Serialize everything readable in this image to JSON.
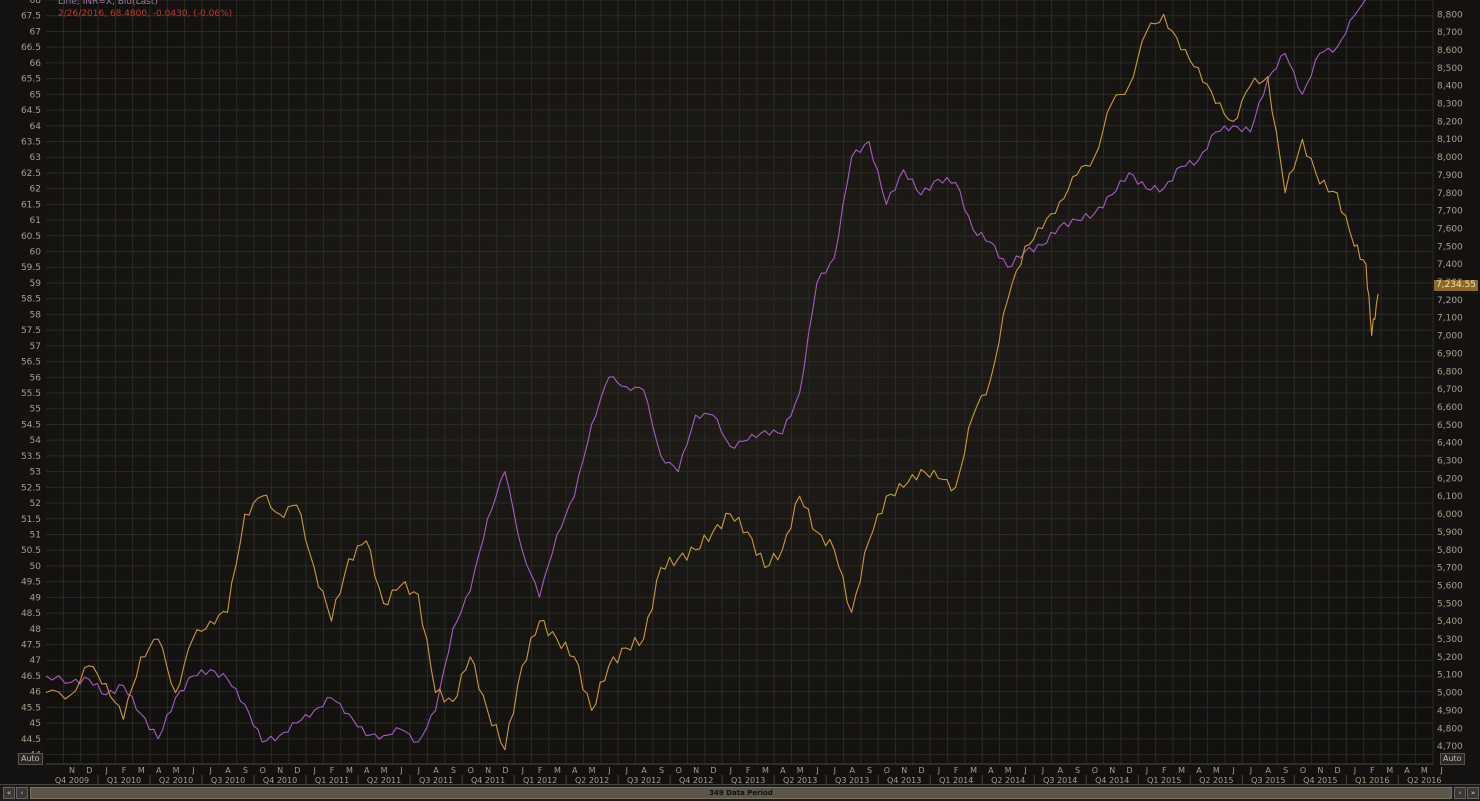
{
  "legend": {
    "line1": "Line; INR=X, Bid(Last)",
    "line2": "2/26/2016, 68.4800, -0.0430, (-0.06%)"
  },
  "controls": {
    "auto_left": "Auto",
    "auto_right": "Auto"
  },
  "last_value_label": "7,234.55",
  "scrollbar": {
    "label": "349 Data Period",
    "btn_first": "«",
    "btn_prev": "‹",
    "btn_next": "›",
    "btn_last": "»"
  },
  "colors": {
    "background": "#141210",
    "grid": "#2c2a25",
    "inr_series": "#a35cc0",
    "index_series": "#c89a3a",
    "axis_text": "#a89e8c"
  },
  "chart_data": {
    "type": "line",
    "x_range": [
      "2009-10",
      "2016-06"
    ],
    "left_axis": {
      "ylim": [
        43.7,
        68.0
      ],
      "ticks": [
        "44",
        "44.5",
        "45",
        "45.5",
        "46",
        "46.5",
        "47",
        "47.5",
        "48",
        "48.5",
        "49",
        "49.5",
        "50",
        "50.5",
        "51",
        "51.5",
        "52",
        "52.5",
        "53",
        "53.5",
        "54",
        "54.5",
        "55",
        "55.5",
        "56",
        "56.5",
        "57",
        "57.5",
        "58",
        "58.5",
        "59",
        "59.5",
        "60",
        "60.5",
        "61",
        "61.5",
        "62",
        "62.5",
        "63",
        "63.5",
        "64",
        "64.5",
        "65",
        "65.5",
        "66",
        "66.5",
        "67",
        "67.5",
        "68"
      ]
    },
    "right_axis": {
      "ylim": [
        4600,
        8880
      ],
      "ticks": [
        "4,700",
        "4,800",
        "4,900",
        "5,000",
        "5,100",
        "5,200",
        "5,300",
        "5,400",
        "5,500",
        "5,600",
        "5,700",
        "5,800",
        "5,900",
        "6,000",
        "6,100",
        "6,200",
        "6,300",
        "6,400",
        "6,500",
        "6,600",
        "6,700",
        "6,800",
        "6,900",
        "7,000",
        "7,100",
        "7,200",
        "7,300",
        "7,400",
        "7,500",
        "7,600",
        "7,700",
        "7,800",
        "7,900",
        "8,000",
        "8,100",
        "8,200",
        "8,300",
        "8,400",
        "8,500",
        "8,600",
        "8,700",
        "8,800"
      ]
    },
    "month_labels": [
      "N",
      "D",
      "J",
      "F",
      "M",
      "A",
      "M",
      "J",
      "J",
      "A",
      "S",
      "O",
      "N",
      "D",
      "J",
      "F",
      "M",
      "A",
      "M",
      "J",
      "J",
      "A",
      "S",
      "O",
      "N",
      "D",
      "J",
      "F",
      "M",
      "A",
      "M",
      "J",
      "J",
      "A",
      "S",
      "O",
      "N",
      "D",
      "J",
      "F",
      "M",
      "A",
      "M",
      "J",
      "J",
      "A",
      "S",
      "O",
      "N",
      "D",
      "J",
      "F",
      "M",
      "A",
      "M",
      "J",
      "J",
      "A",
      "S",
      "O",
      "N",
      "D",
      "J",
      "F",
      "M",
      "A",
      "M",
      "J",
      "J",
      "A",
      "S",
      "O",
      "N",
      "D",
      "J",
      "F",
      "M",
      "A",
      "M",
      "J"
    ],
    "quarter_labels": [
      "Q4 2009",
      "Q1 2010",
      "Q2 2010",
      "Q3 2010",
      "Q4 2010",
      "Q1 2011",
      "Q2 2011",
      "Q3 2011",
      "Q4 2011",
      "Q1 2012",
      "Q2 2012",
      "Q3 2012",
      "Q4 2012",
      "Q1 2013",
      "Q2 2013",
      "Q3 2013",
      "Q4 2013",
      "Q1 2014",
      "Q2 2014",
      "Q3 2014",
      "Q4 2014",
      "Q1 2015",
      "Q2 2015",
      "Q3 2015",
      "Q4 2015",
      "Q1 2016",
      "Q2 2016"
    ],
    "series": [
      {
        "axis": "left",
        "points": [
          [
            "2009-10-01",
            46.5
          ],
          [
            "2009-11-15",
            46.3
          ],
          [
            "2009-12-15",
            46.4
          ],
          [
            "2010-01-15",
            45.9
          ],
          [
            "2010-02-15",
            46.2
          ],
          [
            "2010-03-15",
            45.3
          ],
          [
            "2010-04-15",
            44.5
          ],
          [
            "2010-05-15",
            45.8
          ],
          [
            "2010-06-15",
            46.5
          ],
          [
            "2010-07-15",
            46.7
          ],
          [
            "2010-08-15",
            46.4
          ],
          [
            "2010-09-15",
            45.6
          ],
          [
            "2010-10-15",
            44.4
          ],
          [
            "2010-11-15",
            44.6
          ],
          [
            "2010-12-15",
            45.0
          ],
          [
            "2011-01-15",
            45.4
          ],
          [
            "2011-02-15",
            45.8
          ],
          [
            "2011-03-15",
            45.3
          ],
          [
            "2011-04-15",
            44.6
          ],
          [
            "2011-05-15",
            44.6
          ],
          [
            "2011-06-15",
            44.8
          ],
          [
            "2011-07-15",
            44.4
          ],
          [
            "2011-08-15",
            45.4
          ],
          [
            "2011-09-15",
            48.0
          ],
          [
            "2011-10-15",
            49.2
          ],
          [
            "2011-11-15",
            51.5
          ],
          [
            "2011-12-15",
            53.0
          ],
          [
            "2012-01-15",
            50.5
          ],
          [
            "2012-02-15",
            49.0
          ],
          [
            "2012-03-15",
            51.0
          ],
          [
            "2012-04-15",
            52.2
          ],
          [
            "2012-05-15",
            54.5
          ],
          [
            "2012-06-15",
            56.0
          ],
          [
            "2012-07-15",
            55.7
          ],
          [
            "2012-08-15",
            55.6
          ],
          [
            "2012-09-15",
            53.5
          ],
          [
            "2012-10-15",
            53.0
          ],
          [
            "2012-11-15",
            54.8
          ],
          [
            "2012-12-15",
            54.8
          ],
          [
            "2013-01-15",
            53.8
          ],
          [
            "2013-02-15",
            54.0
          ],
          [
            "2013-03-15",
            54.3
          ],
          [
            "2013-04-15",
            54.2
          ],
          [
            "2013-05-15",
            55.5
          ],
          [
            "2013-06-15",
            59.0
          ],
          [
            "2013-07-15",
            59.8
          ],
          [
            "2013-08-15",
            63.0
          ],
          [
            "2013-09-15",
            63.5
          ],
          [
            "2013-10-15",
            61.5
          ],
          [
            "2013-11-15",
            62.6
          ],
          [
            "2013-12-15",
            61.8
          ],
          [
            "2014-01-15",
            62.3
          ],
          [
            "2014-02-15",
            62.2
          ],
          [
            "2014-03-15",
            60.7
          ],
          [
            "2014-04-15",
            60.3
          ],
          [
            "2014-05-15",
            59.5
          ],
          [
            "2014-06-15",
            60.0
          ],
          [
            "2014-07-15",
            60.2
          ],
          [
            "2014-08-15",
            60.8
          ],
          [
            "2014-09-15",
            61.0
          ],
          [
            "2014-10-15",
            61.2
          ],
          [
            "2014-11-15",
            61.8
          ],
          [
            "2014-12-15",
            62.5
          ],
          [
            "2015-01-15",
            62.0
          ],
          [
            "2015-02-15",
            62.0
          ],
          [
            "2015-03-15",
            62.7
          ],
          [
            "2015-04-15",
            62.9
          ],
          [
            "2015-05-15",
            63.8
          ],
          [
            "2015-06-15",
            64.0
          ],
          [
            "2015-07-15",
            63.8
          ],
          [
            "2015-08-15",
            65.5
          ],
          [
            "2015-09-15",
            66.3
          ],
          [
            "2015-10-15",
            65.0
          ],
          [
            "2015-11-15",
            66.3
          ],
          [
            "2015-12-15",
            66.5
          ],
          [
            "2016-01-15",
            67.5
          ],
          [
            "2016-02-26",
            68.48
          ]
        ]
      },
      {
        "axis": "right",
        "points": [
          [
            "2009-10-01",
            5000
          ],
          [
            "2009-11-15",
            4990
          ],
          [
            "2009-12-15",
            5150
          ],
          [
            "2010-01-15",
            5050
          ],
          [
            "2010-02-15",
            4850
          ],
          [
            "2010-03-15",
            5200
          ],
          [
            "2010-04-15",
            5300
          ],
          [
            "2010-05-15",
            5000
          ],
          [
            "2010-06-15",
            5300
          ],
          [
            "2010-07-15",
            5400
          ],
          [
            "2010-08-15",
            5450
          ],
          [
            "2010-09-15",
            6000
          ],
          [
            "2010-10-15",
            6100
          ],
          [
            "2010-11-15",
            6000
          ],
          [
            "2010-12-15",
            6050
          ],
          [
            "2011-01-15",
            5700
          ],
          [
            "2011-02-15",
            5400
          ],
          [
            "2011-03-15",
            5750
          ],
          [
            "2011-04-15",
            5850
          ],
          [
            "2011-05-15",
            5500
          ],
          [
            "2011-06-15",
            5600
          ],
          [
            "2011-07-15",
            5550
          ],
          [
            "2011-08-15",
            5000
          ],
          [
            "2011-09-15",
            4950
          ],
          [
            "2011-10-15",
            5200
          ],
          [
            "2011-11-15",
            4900
          ],
          [
            "2011-12-15",
            4680
          ],
          [
            "2012-01-15",
            5150
          ],
          [
            "2012-02-15",
            5400
          ],
          [
            "2012-03-15",
            5300
          ],
          [
            "2012-04-15",
            5200
          ],
          [
            "2012-05-15",
            4900
          ],
          [
            "2012-06-15",
            5150
          ],
          [
            "2012-07-15",
            5250
          ],
          [
            "2012-08-15",
            5300
          ],
          [
            "2012-09-15",
            5700
          ],
          [
            "2012-10-15",
            5750
          ],
          [
            "2012-11-15",
            5800
          ],
          [
            "2012-12-15",
            5900
          ],
          [
            "2013-01-15",
            6000
          ],
          [
            "2013-02-15",
            5900
          ],
          [
            "2013-03-15",
            5700
          ],
          [
            "2013-04-15",
            5800
          ],
          [
            "2013-05-15",
            6100
          ],
          [
            "2013-06-15",
            5900
          ],
          [
            "2013-07-15",
            5800
          ],
          [
            "2013-08-15",
            5450
          ],
          [
            "2013-09-15",
            5850
          ],
          [
            "2013-10-15",
            6100
          ],
          [
            "2013-11-15",
            6150
          ],
          [
            "2013-12-15",
            6250
          ],
          [
            "2014-01-15",
            6200
          ],
          [
            "2014-02-15",
            6150
          ],
          [
            "2014-03-15",
            6550
          ],
          [
            "2014-04-15",
            6750
          ],
          [
            "2014-05-15",
            7200
          ],
          [
            "2014-06-15",
            7500
          ],
          [
            "2014-07-15",
            7600
          ],
          [
            "2014-08-15",
            7750
          ],
          [
            "2014-09-15",
            7900
          ],
          [
            "2014-10-15",
            8000
          ],
          [
            "2014-11-15",
            8300
          ],
          [
            "2014-12-15",
            8400
          ],
          [
            "2015-01-15",
            8700
          ],
          [
            "2015-02-15",
            8800
          ],
          [
            "2015-03-15",
            8600
          ],
          [
            "2015-04-15",
            8500
          ],
          [
            "2015-05-15",
            8300
          ],
          [
            "2015-06-15",
            8200
          ],
          [
            "2015-07-15",
            8400
          ],
          [
            "2015-08-15",
            8450
          ],
          [
            "2015-09-15",
            7800
          ],
          [
            "2015-10-15",
            8100
          ],
          [
            "2015-11-15",
            7850
          ],
          [
            "2015-12-15",
            7800
          ],
          [
            "2016-01-15",
            7500
          ],
          [
            "2016-02-05",
            7400
          ],
          [
            "2016-02-15",
            7000
          ],
          [
            "2016-02-26",
            7234.55
          ]
        ]
      }
    ]
  }
}
